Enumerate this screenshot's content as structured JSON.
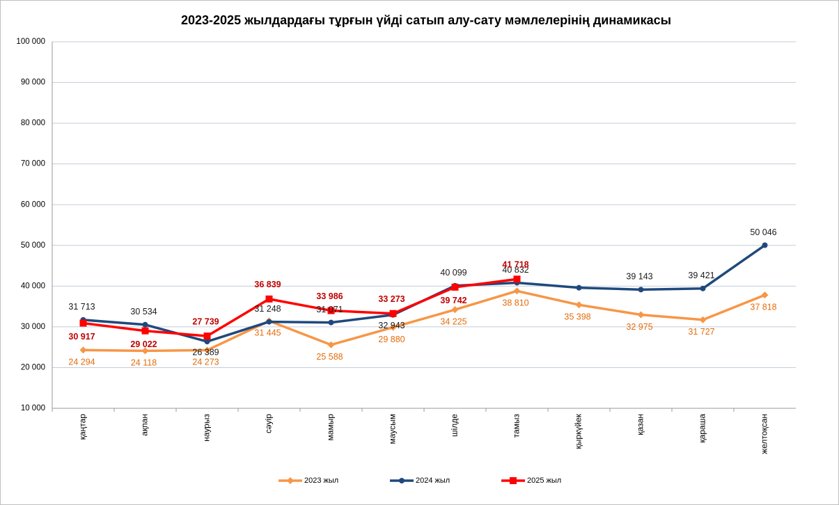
{
  "chart_data": {
    "type": "line",
    "title": "2023-2025 жылдардағы тұрғын үйді сатып алу-сату мәмлелерінің динамикасы",
    "categories": [
      "қаңтар",
      "ақпан",
      "наурыз",
      "сәуір",
      "мамыр",
      "маусым",
      "шілде",
      "тамыз",
      "қыркүйек",
      "қазан",
      "қараша",
      "желтоқсан"
    ],
    "series": [
      {
        "name": "2023 жыл",
        "color": "#f79646",
        "marker": "diamond",
        "values": [
          24294,
          24118,
          24273,
          31445,
          25588,
          29880,
          34225,
          38810,
          35398,
          32975,
          31727,
          37818
        ],
        "value_labels": [
          "24 294",
          "24 118",
          "24 273",
          "31 445",
          "25 588",
          "29 880",
          "34 225",
          "38 810",
          "35 398",
          "32 975",
          "31 727",
          "37 818"
        ]
      },
      {
        "name": "2024 жыл",
        "color": "#1f497d",
        "marker": "circle",
        "values": [
          31713,
          30534,
          26389,
          31248,
          31071,
          32943,
          40099,
          40832,
          39600,
          39143,
          39421,
          50046
        ],
        "value_labels": [
          "31 713",
          "30 534",
          "26 389",
          "31 248",
          "31 071",
          "32 943",
          "40 099",
          "40 832",
          null,
          "39 143",
          "39 421",
          "50 046"
        ]
      },
      {
        "name": "2025 жыл",
        "color": "#ff0000",
        "marker": "square",
        "label_color": "#c00000",
        "values": [
          30917,
          29022,
          27739,
          36839,
          33986,
          33273,
          39742,
          41718,
          null,
          null,
          null,
          null
        ],
        "value_labels": [
          "30 917",
          "29 022",
          "27 739",
          "36 839",
          "33 986",
          "33 273",
          "39 742",
          "41 718",
          null,
          null,
          null,
          null
        ]
      }
    ],
    "ylim": [
      10000,
      100000
    ],
    "yticks": [
      {
        "value": 10000,
        "label": "10 000"
      },
      {
        "value": 20000,
        "label": "20 000"
      },
      {
        "value": 30000,
        "label": "30 000"
      },
      {
        "value": 40000,
        "label": "40 000"
      },
      {
        "value": 50000,
        "label": "50 000"
      },
      {
        "value": 60000,
        "label": "60 000"
      },
      {
        "value": 70000,
        "label": "70 000"
      },
      {
        "value": 80000,
        "label": "80 000"
      },
      {
        "value": 90000,
        "label": "90 000"
      },
      {
        "value": 100000,
        "label": "100 000"
      }
    ],
    "grid": true,
    "legend": "bottom"
  }
}
